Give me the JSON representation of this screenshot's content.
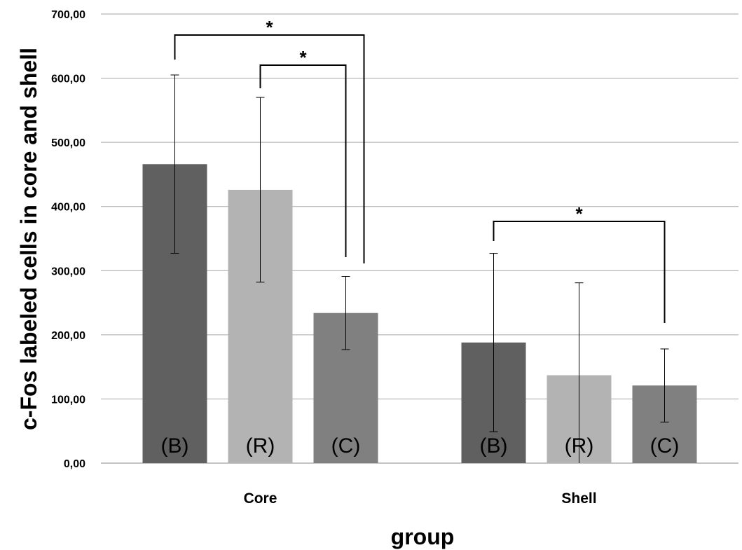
{
  "chart_data": {
    "type": "bar",
    "title": "",
    "xlabel": "group",
    "ylabel": "c-Fos labeled cells in core and shell",
    "ylim": [
      0,
      700
    ],
    "yticks": [
      0,
      100,
      200,
      300,
      400,
      500,
      600,
      700
    ],
    "ytick_labels": [
      "0,00",
      "100,00",
      "200,00",
      "300,00",
      "400,00",
      "500,00",
      "600,00",
      "700,00"
    ],
    "grid": true,
    "legend": "none",
    "categories": [
      "Core",
      "Shell"
    ],
    "series": [
      {
        "name": "(B)",
        "color": "#606060",
        "values": [
          466,
          188
        ],
        "errors": [
          139,
          139
        ]
      },
      {
        "name": "(R)",
        "color": "#b3b3b3",
        "values": [
          426,
          137
        ],
        "errors": [
          144,
          144
        ]
      },
      {
        "name": "(C)",
        "color": "#808080",
        "values": [
          234,
          121
        ],
        "errors": [
          57,
          57
        ]
      }
    ],
    "significance": [
      {
        "category": "Core",
        "from": "(B)",
        "to": "(C)",
        "label": "*"
      },
      {
        "category": "Core",
        "from": "(R)",
        "to": "(C)",
        "label": "*"
      },
      {
        "category": "Shell",
        "from": "(B)",
        "to": "(C)",
        "label": "*"
      }
    ]
  }
}
